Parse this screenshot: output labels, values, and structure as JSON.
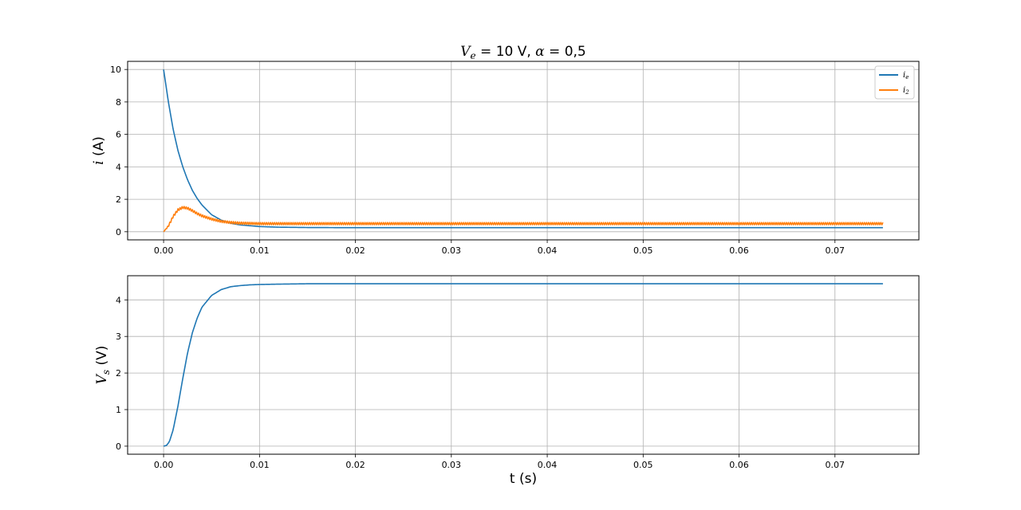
{
  "chart_data": [
    {
      "type": "line",
      "title": "V_e = 10 V,  α = 0,5",
      "title_parts": {
        "var": "V",
        "sub": "e",
        "rest": " = 10 V,  ",
        "alpha": "α",
        "alpha_rest": " = 0,5"
      },
      "xlabel": "",
      "ylabel": "i (A)",
      "ylabel_parts": {
        "var": "i",
        "rest": " (A)"
      },
      "xlim": [
        -0.00375,
        0.07875
      ],
      "ylim": [
        -0.5,
        10.5
      ],
      "xticks": [
        0.0,
        0.01,
        0.02,
        0.03,
        0.04,
        0.05,
        0.06,
        0.07
      ],
      "xtick_labels": [
        "0.00",
        "0.01",
        "0.02",
        "0.03",
        "0.04",
        "0.05",
        "0.06",
        "0.07"
      ],
      "yticks": [
        0,
        2,
        4,
        6,
        8,
        10
      ],
      "ytick_labels": [
        "0",
        "2",
        "4",
        "6",
        "8",
        "10"
      ],
      "grid": true,
      "legend": "top-right",
      "series": [
        {
          "name": "i_e",
          "name_parts": {
            "var": "i",
            "sub": "e"
          },
          "color": "#1f77b4",
          "x": [
            0.0,
            0.0005,
            0.001,
            0.0015,
            0.002,
            0.0025,
            0.003,
            0.0035,
            0.004,
            0.005,
            0.006,
            0.007,
            0.008,
            0.01,
            0.012,
            0.015,
            0.02,
            0.03,
            0.04,
            0.05,
            0.06,
            0.075
          ],
          "y": [
            10.0,
            8.0,
            6.3,
            5.0,
            4.0,
            3.2,
            2.55,
            2.05,
            1.65,
            1.05,
            0.72,
            0.52,
            0.42,
            0.32,
            0.28,
            0.26,
            0.25,
            0.25,
            0.25,
            0.25,
            0.25,
            0.25
          ]
        },
        {
          "name": "i_2",
          "name_parts": {
            "var": "i",
            "sub": "2"
          },
          "color": "#ff7f0e",
          "ripple": 0.07,
          "x": [
            0.0,
            0.0005,
            0.001,
            0.0015,
            0.002,
            0.0025,
            0.003,
            0.0035,
            0.004,
            0.005,
            0.006,
            0.007,
            0.008,
            0.01,
            0.012,
            0.015,
            0.02,
            0.03,
            0.04,
            0.05,
            0.06,
            0.075
          ],
          "y": [
            0.0,
            0.35,
            0.95,
            1.35,
            1.5,
            1.45,
            1.3,
            1.12,
            0.98,
            0.78,
            0.64,
            0.57,
            0.53,
            0.5,
            0.5,
            0.5,
            0.5,
            0.5,
            0.5,
            0.5,
            0.5,
            0.5
          ]
        }
      ]
    },
    {
      "type": "line",
      "title": "",
      "xlabel": "t (s)",
      "ylabel": "V_s (V)",
      "ylabel_parts": {
        "var": "V",
        "sub": "s",
        "rest": " (V)"
      },
      "xlim": [
        -0.00375,
        0.07875
      ],
      "ylim": [
        -0.22,
        4.66
      ],
      "xticks": [
        0.0,
        0.01,
        0.02,
        0.03,
        0.04,
        0.05,
        0.06,
        0.07
      ],
      "xtick_labels": [
        "0.00",
        "0.01",
        "0.02",
        "0.03",
        "0.04",
        "0.05",
        "0.06",
        "0.07"
      ],
      "yticks": [
        0,
        1,
        2,
        3,
        4
      ],
      "ytick_labels": [
        "0",
        "1",
        "2",
        "3",
        "4"
      ],
      "grid": true,
      "series": [
        {
          "name": "",
          "color": "#1f77b4",
          "x": [
            0.0,
            0.0003,
            0.0006,
            0.001,
            0.0015,
            0.002,
            0.0025,
            0.003,
            0.0035,
            0.004,
            0.005,
            0.006,
            0.007,
            0.008,
            0.009,
            0.01,
            0.012,
            0.015,
            0.02,
            0.03,
            0.05,
            0.075
          ],
          "y": [
            0.0,
            0.02,
            0.12,
            0.45,
            1.1,
            1.85,
            2.55,
            3.1,
            3.5,
            3.8,
            4.12,
            4.28,
            4.36,
            4.39,
            4.41,
            4.42,
            4.43,
            4.44,
            4.44,
            4.44,
            4.44,
            4.44
          ]
        }
      ]
    }
  ]
}
